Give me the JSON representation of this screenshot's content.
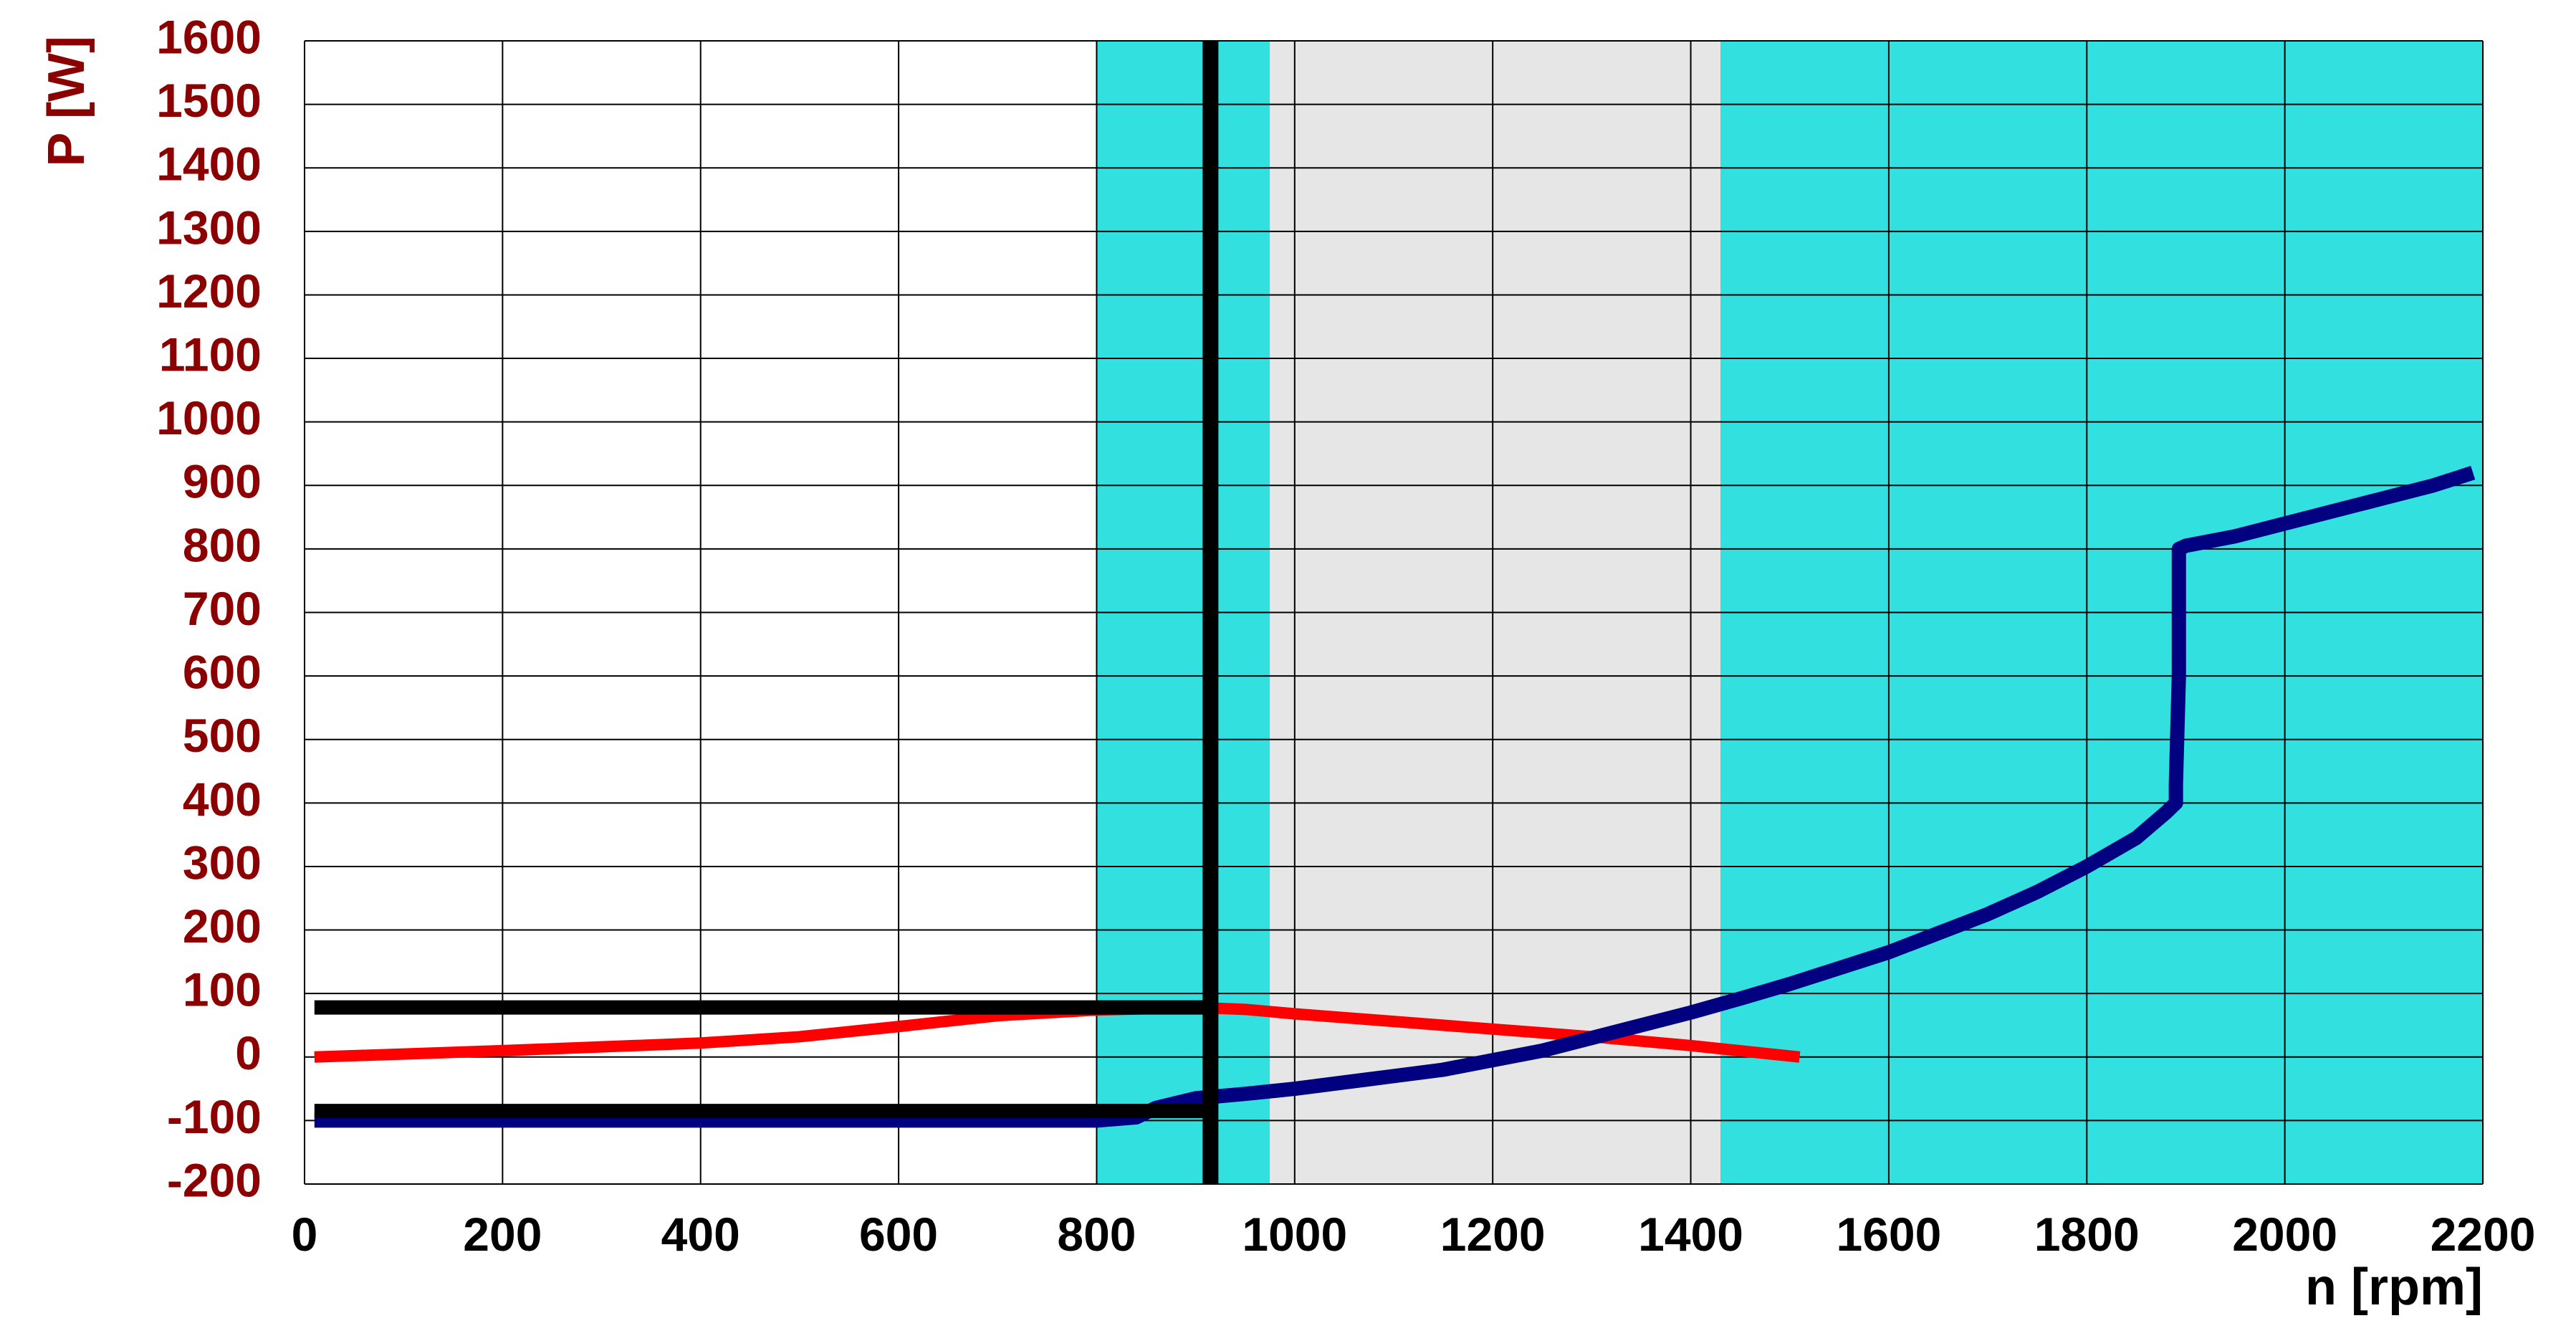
{
  "chart_data": {
    "type": "line",
    "title": "",
    "xlabel": "n [rpm]",
    "ylabel": "P [W]",
    "xlim": [
      0,
      2200
    ],
    "ylim": [
      -200,
      1600
    ],
    "x_ticks": [
      "0",
      "200",
      "400",
      "600",
      "800",
      "1000",
      "1200",
      "1400",
      "1600",
      "1800",
      "2000",
      "2200"
    ],
    "y_ticks": [
      "-200",
      "-100",
      "0",
      "100",
      "200",
      "300",
      "400",
      "500",
      "600",
      "700",
      "800",
      "900",
      "1000",
      "1100",
      "1200",
      "1300",
      "1400",
      "1500",
      "1600"
    ],
    "grid": true,
    "shaded_regions": [
      {
        "x": [
          800,
          975
        ],
        "color": "#33e0e0"
      },
      {
        "x": [
          975,
          1430
        ],
        "color": "#e6e6e6"
      },
      {
        "x": [
          1430,
          2200
        ],
        "color": "#33e0e0"
      }
    ],
    "series": [
      {
        "color": "#ff0000",
        "points": [
          [
            10,
            0
          ],
          [
            200,
            10
          ],
          [
            400,
            22
          ],
          [
            500,
            32
          ],
          [
            600,
            48
          ],
          [
            700,
            65
          ],
          [
            800,
            74
          ],
          [
            900,
            78
          ],
          [
            950,
            75
          ],
          [
            1000,
            68
          ],
          [
            1100,
            56
          ],
          [
            1200,
            44
          ],
          [
            1300,
            32
          ],
          [
            1400,
            18
          ],
          [
            1510,
            0
          ]
        ]
      },
      {
        "color": "#000080",
        "points": [
          [
            10,
            -100
          ],
          [
            800,
            -100
          ],
          [
            840,
            -95
          ],
          [
            860,
            -80
          ],
          [
            900,
            -65
          ],
          [
            950,
            -58
          ],
          [
            1000,
            -50
          ],
          [
            1050,
            -40
          ],
          [
            1100,
            -30
          ],
          [
            1150,
            -20
          ],
          [
            1200,
            -5
          ],
          [
            1250,
            10
          ],
          [
            1300,
            30
          ],
          [
            1350,
            50
          ],
          [
            1400,
            70
          ],
          [
            1450,
            92
          ],
          [
            1500,
            115
          ],
          [
            1550,
            140
          ],
          [
            1600,
            165
          ],
          [
            1650,
            195
          ],
          [
            1700,
            225
          ],
          [
            1750,
            260
          ],
          [
            1800,
            300
          ],
          [
            1850,
            345
          ],
          [
            1880,
            385
          ],
          [
            1890,
            400
          ],
          [
            1890,
            430
          ],
          [
            1893,
            600
          ],
          [
            1893,
            800
          ],
          [
            1900,
            805
          ],
          [
            1950,
            820
          ],
          [
            2000,
            840
          ],
          [
            2050,
            860
          ],
          [
            2100,
            880
          ],
          [
            2150,
            900
          ],
          [
            2190,
            920
          ]
        ]
      }
    ],
    "reference_lines": [
      {
        "type": "vertical",
        "x": 915,
        "y_range": [
          -200,
          1600
        ],
        "color": "#000000"
      },
      {
        "type": "horizontal",
        "y": 78,
        "x_range": [
          10,
          915
        ],
        "color": "#000000"
      },
      {
        "type": "horizontal",
        "y": -85,
        "x_range": [
          10,
          915
        ],
        "color": "#000000"
      }
    ]
  }
}
